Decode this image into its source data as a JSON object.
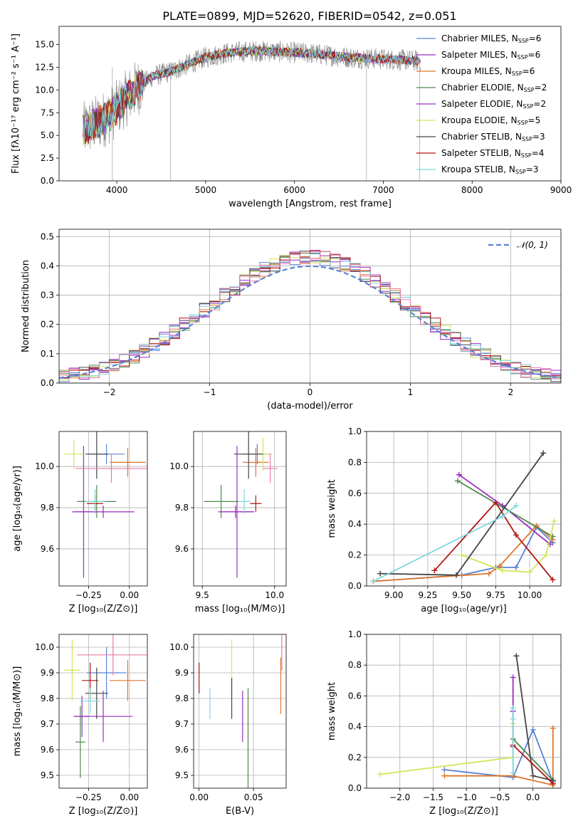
{
  "figure_title": "PLATE=0899, MJD=52620, FIBERID=0542, z=0.051",
  "colors": {
    "Chabrier MILES": "#5b82d8",
    "Salpeter MILES": "#9b2bc2",
    "Kroupa MILES": "#e0762a",
    "Chabrier ELODIE": "#4e8a4e",
    "Salpeter ELODIE": "#9b2bc2",
    "Kroupa ELODIE": "#d4e55a",
    "Chabrier STELIB": "#444444",
    "Salpeter STELIB": "#b01515",
    "Kroupa STELIB": "#7fd6dd",
    "data": "#808080",
    "pink": "#e87aa8"
  },
  "chart_data": [
    {
      "id": "spectrum",
      "type": "line",
      "xlabel": "wavelength [Angstrom, rest frame]",
      "ylabel": "Flux [fλ10⁻¹⁷ erg cm⁻² s⁻¹ A⁻¹]",
      "xlim": [
        3350,
        9000
      ],
      "ylim": [
        0,
        17
      ],
      "xticks": [
        "4000",
        "5000",
        "6000",
        "7000",
        "8000",
        "9000"
      ],
      "yticks": [
        "0.0",
        "2.5",
        "5.0",
        "7.5",
        "10.0",
        "12.5",
        "15.0"
      ],
      "continuum_x": [
        3600,
        3700,
        3800,
        3900,
        4000,
        4200,
        4400,
        4600,
        4800,
        5000,
        5200,
        5400,
        5600,
        5800,
        6000,
        6200,
        6400,
        6600,
        6800,
        7000,
        7200,
        7400
      ],
      "continuum_y": [
        5.5,
        6.0,
        6.5,
        7.0,
        8.0,
        10.0,
        11.5,
        12.0,
        12.8,
        13.6,
        14.0,
        14.2,
        14.3,
        14.2,
        14.1,
        14.0,
        13.8,
        13.6,
        13.5,
        13.4,
        13.3,
        13.2
      ],
      "legend": [
        {
          "label": "Chabrier MILES, N",
          "sub": "SSP",
          "tail": "=6",
          "color_key": "Chabrier MILES"
        },
        {
          "label": "Salpeter MILES, N",
          "sub": "SSP",
          "tail": "=6",
          "color_key": "Salpeter MILES"
        },
        {
          "label": "Kroupa MILES, N",
          "sub": "SSP",
          "tail": "=6",
          "color_key": "Kroupa MILES"
        },
        {
          "label": "Chabrier ELODIE, N",
          "sub": "SSP",
          "tail": "=2",
          "color_key": "Chabrier ELODIE"
        },
        {
          "label": "Salpeter ELODIE, N",
          "sub": "SSP",
          "tail": "=2",
          "color_key": "Salpeter ELODIE"
        },
        {
          "label": "Kroupa ELODIE, N",
          "sub": "SSP",
          "tail": "=5",
          "color_key": "Kroupa ELODIE"
        },
        {
          "label": "Chabrier STELIB, N",
          "sub": "SSP",
          "tail": "=3",
          "color_key": "Chabrier STELIB"
        },
        {
          "label": "Salpeter STELIB, N",
          "sub": "SSP",
          "tail": "=4",
          "color_key": "Salpeter STELIB"
        },
        {
          "label": "Kroupa STELIB, N",
          "sub": "SSP",
          "tail": "=3",
          "color_key": "Kroupa STELIB"
        }
      ]
    },
    {
      "id": "residuals",
      "type": "histogram",
      "xlabel": "(data-model)/error",
      "ylabel": "Normed distribution",
      "xlim": [
        -2.5,
        2.5
      ],
      "ylim": [
        0,
        0.525
      ],
      "xticks": [
        "−2",
        "−1",
        "0",
        "1",
        "2"
      ],
      "yticks": [
        "0.0",
        "0.1",
        "0.2",
        "0.3",
        "0.4",
        "0.5"
      ],
      "reference_curve": {
        "label": "𝒩(0, 1)",
        "mean": 0,
        "sigma": 1
      }
    },
    {
      "id": "age_vs_Z",
      "type": "scatter",
      "xlabel": "Z [log₁₀(Z/Z⊙)]",
      "ylabel": "age  [log₁₀(age/yr)]",
      "xlim": [
        -0.43,
        0.11
      ],
      "ylim": [
        9.42,
        10.17
      ],
      "xticks": [
        "−0.25",
        "0.00"
      ],
      "yticks": [
        "9.6",
        "9.8",
        "10.0"
      ],
      "points": [
        {
          "x": -0.14,
          "y": 10.06,
          "xerr": 0.11,
          "yerr": 0.05,
          "color_key": "Chabrier MILES"
        },
        {
          "x": -0.28,
          "y": 9.78,
          "xerr": 0.05,
          "yerr": 0.32,
          "color_key": "Salpeter MILES"
        },
        {
          "x": -0.01,
          "y": 10.02,
          "xerr": 0.11,
          "yerr": 0.07,
          "color_key": "Kroupa MILES"
        },
        {
          "x": -0.2,
          "y": 9.83,
          "xerr": 0.12,
          "yerr": 0.08,
          "color_key": "Chabrier ELODIE"
        },
        {
          "x": -0.16,
          "y": 9.78,
          "xerr": 0.19,
          "yerr": 0.03,
          "color_key": "Salpeter ELODIE"
        },
        {
          "x": -0.34,
          "y": 10.06,
          "xerr": 0.06,
          "yerr": 0.07,
          "color_key": "Kroupa ELODIE"
        },
        {
          "x": -0.2,
          "y": 10.06,
          "xerr": 0.07,
          "yerr": 0.12,
          "color_key": "Chabrier STELIB"
        },
        {
          "x": -0.21,
          "y": 9.82,
          "xerr": 0.05,
          "yerr": 0.04,
          "color_key": "Salpeter STELIB"
        },
        {
          "x": -0.21,
          "y": 9.83,
          "xerr": 0.06,
          "yerr": 0.06,
          "color_key": "Kroupa STELIB"
        },
        {
          "x": -0.11,
          "y": 9.99,
          "xerr": 0.22,
          "yerr": 0.07,
          "color_key": "pink"
        }
      ]
    },
    {
      "id": "age_vs_mass",
      "type": "scatter",
      "xlabel": "mass [log₁₀(M/M⊙)]",
      "ylabel": "",
      "xlim": [
        9.44,
        10.08
      ],
      "ylim": [
        9.42,
        10.17
      ],
      "xticks": [
        "9.5",
        "10.0"
      ],
      "yticks": [
        "9.6",
        "9.8",
        "10.0"
      ],
      "points": [
        {
          "x": 9.88,
          "y": 10.06,
          "xerr": 0.1,
          "yerr": 0.05,
          "color_key": "Chabrier MILES"
        },
        {
          "x": 9.74,
          "y": 9.78,
          "xerr": 0.12,
          "yerr": 0.32,
          "color_key": "Salpeter MILES"
        },
        {
          "x": 9.87,
          "y": 10.02,
          "xerr": 0.09,
          "yerr": 0.07,
          "color_key": "Kroupa MILES"
        },
        {
          "x": 9.63,
          "y": 9.83,
          "xerr": 0.12,
          "yerr": 0.08,
          "color_key": "Chabrier ELODIE"
        },
        {
          "x": 9.73,
          "y": 9.78,
          "xerr": 0.12,
          "yerr": 0.03,
          "color_key": "Salpeter ELODIE"
        },
        {
          "x": 9.92,
          "y": 10.06,
          "xerr": 0.06,
          "yerr": 0.08,
          "color_key": "Kroupa ELODIE"
        },
        {
          "x": 9.82,
          "y": 10.06,
          "xerr": 0.1,
          "yerr": 0.12,
          "color_key": "Chabrier STELIB"
        },
        {
          "x": 9.87,
          "y": 9.82,
          "xerr": 0.04,
          "yerr": 0.04,
          "color_key": "Salpeter STELIB"
        },
        {
          "x": 9.79,
          "y": 9.83,
          "xerr": 0.04,
          "yerr": 0.06,
          "color_key": "Kroupa STELIB"
        },
        {
          "x": 9.97,
          "y": 9.99,
          "xerr": 0.05,
          "yerr": 0.07,
          "color_key": "pink"
        }
      ]
    },
    {
      "id": "weight_vs_age",
      "type": "line",
      "xlabel": "age  [log₁₀(age/yr)]",
      "ylabel": "mass weight",
      "xlim": [
        8.8,
        10.23
      ],
      "ylim": [
        0,
        1.0
      ],
      "xticks": [
        "9.00",
        "9.25",
        "9.50",
        "9.75",
        "10.00"
      ],
      "yticks": [
        "0.0",
        "0.2",
        "0.4",
        "0.6",
        "0.8",
        "1.0"
      ],
      "series": [
        {
          "color_key": "Chabrier MILES",
          "x": [
            8.85,
            9.5,
            9.75,
            9.9,
            10.05,
            10.17
          ],
          "y": [
            0.03,
            0.07,
            0.12,
            0.12,
            0.38,
            0.28
          ]
        },
        {
          "color_key": "Salpeter MILES",
          "x": [
            9.48,
            9.8,
            10.15
          ],
          "y": [
            0.72,
            0.52,
            0.27
          ]
        },
        {
          "color_key": "Kroupa MILES",
          "x": [
            8.85,
            9.7,
            9.78,
            10.05,
            10.17
          ],
          "y": [
            0.03,
            0.08,
            0.13,
            0.39,
            0.3
          ]
        },
        {
          "color_key": "Chabrier ELODIE",
          "x": [
            9.47,
            10.17
          ],
          "y": [
            0.68,
            0.32
          ]
        },
        {
          "color_key": "Kroupa ELODIE",
          "x": [
            9.5,
            9.8,
            10.0,
            10.12,
            10.18
          ],
          "y": [
            0.2,
            0.1,
            0.09,
            0.2,
            0.42
          ]
        },
        {
          "color_key": "Chabrier STELIB",
          "x": [
            8.9,
            9.46,
            10.1
          ],
          "y": [
            0.08,
            0.07,
            0.86
          ]
        },
        {
          "color_key": "Salpeter STELIB",
          "x": [
            9.3,
            9.75,
            9.9,
            10.17
          ],
          "y": [
            0.1,
            0.54,
            0.33,
            0.04
          ]
        },
        {
          "color_key": "Kroupa STELIB",
          "x": [
            8.85,
            9.8,
            9.9
          ],
          "y": [
            0.03,
            0.45,
            0.52
          ]
        }
      ]
    },
    {
      "id": "mass_vs_Z",
      "type": "scatter",
      "xlabel": "Z [log₁₀(Z/Z⊙)]",
      "ylabel": "mass [log₁₀(M/M⊙)]",
      "xlim": [
        -0.43,
        0.11
      ],
      "ylim": [
        9.45,
        10.05
      ],
      "xticks": [
        "−0.25",
        "0.00"
      ],
      "yticks": [
        "9.5",
        "9.6",
        "9.7",
        "9.8",
        "9.9",
        "10.0"
      ],
      "points": [
        {
          "x": -0.14,
          "y": 9.9,
          "xerr": 0.12,
          "yerr": 0.1,
          "color_key": "Chabrier MILES"
        },
        {
          "x": -0.29,
          "y": 9.73,
          "xerr": 0.05,
          "yerr": 0.08,
          "color_key": "Salpeter MILES"
        },
        {
          "x": -0.01,
          "y": 9.87,
          "xerr": 0.11,
          "yerr": 0.08,
          "color_key": "Kroupa MILES"
        },
        {
          "x": -0.3,
          "y": 9.63,
          "xerr": 0.03,
          "yerr": 0.14,
          "color_key": "Chabrier ELODIE"
        },
        {
          "x": -0.16,
          "y": 9.73,
          "xerr": 0.18,
          "yerr": 0.1,
          "color_key": "Salpeter ELODIE"
        },
        {
          "x": -0.35,
          "y": 9.91,
          "xerr": 0.05,
          "yerr": 0.12,
          "color_key": "Kroupa ELODIE"
        },
        {
          "x": -0.2,
          "y": 9.82,
          "xerr": 0.07,
          "yerr": 0.1,
          "color_key": "Chabrier STELIB"
        },
        {
          "x": -0.24,
          "y": 9.87,
          "xerr": 0.05,
          "yerr": 0.07,
          "color_key": "Salpeter STELIB"
        },
        {
          "x": -0.24,
          "y": 9.79,
          "xerr": 0.06,
          "yerr": 0.05,
          "color_key": "Kroupa STELIB"
        },
        {
          "x": -0.1,
          "y": 9.97,
          "xerr": 0.22,
          "yerr": 0.08,
          "color_key": "pink"
        }
      ]
    },
    {
      "id": "mass_vs_EBV",
      "type": "scatter",
      "xlabel": "E(B-V)",
      "ylabel": "",
      "xlim": [
        -0.005,
        0.08
      ],
      "ylim": [
        9.45,
        10.05
      ],
      "xticks": [
        "0.00",
        "0.05"
      ],
      "yticks": [
        "9.5",
        "9.6",
        "9.7",
        "9.8",
        "9.9",
        "10.0"
      ],
      "points": [
        {
          "x": 0.0,
          "y": 9.88,
          "xerr": 0,
          "yerr": 0.06,
          "color_key": "Salpeter STELIB"
        },
        {
          "x": 0.01,
          "y": 9.78,
          "xerr": 0,
          "yerr": 0.06,
          "color_key": "Kroupa STELIB"
        },
        {
          "x": 0.03,
          "y": 9.92,
          "xerr": 0,
          "yerr": 0.11,
          "color_key": "Kroupa ELODIE"
        },
        {
          "x": 0.03,
          "y": 9.8,
          "xerr": 0,
          "yerr": 0.08,
          "color_key": "Chabrier STELIB"
        },
        {
          "x": 0.04,
          "y": 9.73,
          "xerr": 0,
          "yerr": 0.1,
          "color_key": "Salpeter MILES"
        },
        {
          "x": 0.045,
          "y": 9.62,
          "xerr": 0,
          "yerr": 0.22,
          "color_key": "Chabrier ELODIE"
        },
        {
          "x": 0.075,
          "y": 9.85,
          "xerr": 0,
          "yerr": 0.11,
          "color_key": "Kroupa MILES"
        },
        {
          "x": 0.076,
          "y": 9.98,
          "xerr": 0,
          "yerr": 0.07,
          "color_key": "pink"
        }
      ]
    },
    {
      "id": "weight_vs_Z",
      "type": "line",
      "xlabel": "Z [log₁₀(Z/Z⊙)]",
      "ylabel": "mass weight",
      "xlim": [
        -2.5,
        0.42
      ],
      "ylim": [
        0,
        1.0
      ],
      "xticks": [
        "−2.0",
        "−1.5",
        "−1.0",
        "−0.5",
        "0.0"
      ],
      "yticks": [
        "0.0",
        "0.2",
        "0.4",
        "0.6",
        "0.8",
        "1.0"
      ],
      "series": [
        {
          "color_key": "Chabrier MILES",
          "x": [
            -1.33,
            -0.3,
            0.0,
            0.3
          ],
          "y": [
            0.12,
            0.07,
            0.38,
            0.04
          ]
        },
        {
          "color_key": "Salpeter MILES",
          "x": [
            -0.3,
            -0.3,
            -0.3
          ],
          "y": [
            0.72,
            0.5,
            0.27
          ]
        },
        {
          "color_key": "Kroupa MILES",
          "x": [
            -1.33,
            -0.3,
            0.3,
            0.3
          ],
          "y": [
            0.08,
            0.08,
            0.02,
            0.39
          ]
        },
        {
          "color_key": "Chabrier ELODIE",
          "x": [
            -0.3,
            0.3
          ],
          "y": [
            0.32,
            0.05
          ]
        },
        {
          "color_key": "Kroupa ELODIE",
          "x": [
            -2.3,
            -0.3,
            -0.3
          ],
          "y": [
            0.09,
            0.2,
            0.42
          ]
        },
        {
          "color_key": "Chabrier STELIB",
          "x": [
            -0.25,
            0.0,
            0.3
          ],
          "y": [
            0.86,
            0.08,
            0.05
          ]
        },
        {
          "color_key": "Salpeter STELIB",
          "x": [
            -0.3,
            0.3
          ],
          "y": [
            0.28,
            0.03
          ]
        },
        {
          "color_key": "Kroupa STELIB",
          "x": [
            -0.3,
            -0.3,
            -0.3
          ],
          "y": [
            0.1,
            0.45,
            0.52
          ]
        }
      ]
    }
  ]
}
